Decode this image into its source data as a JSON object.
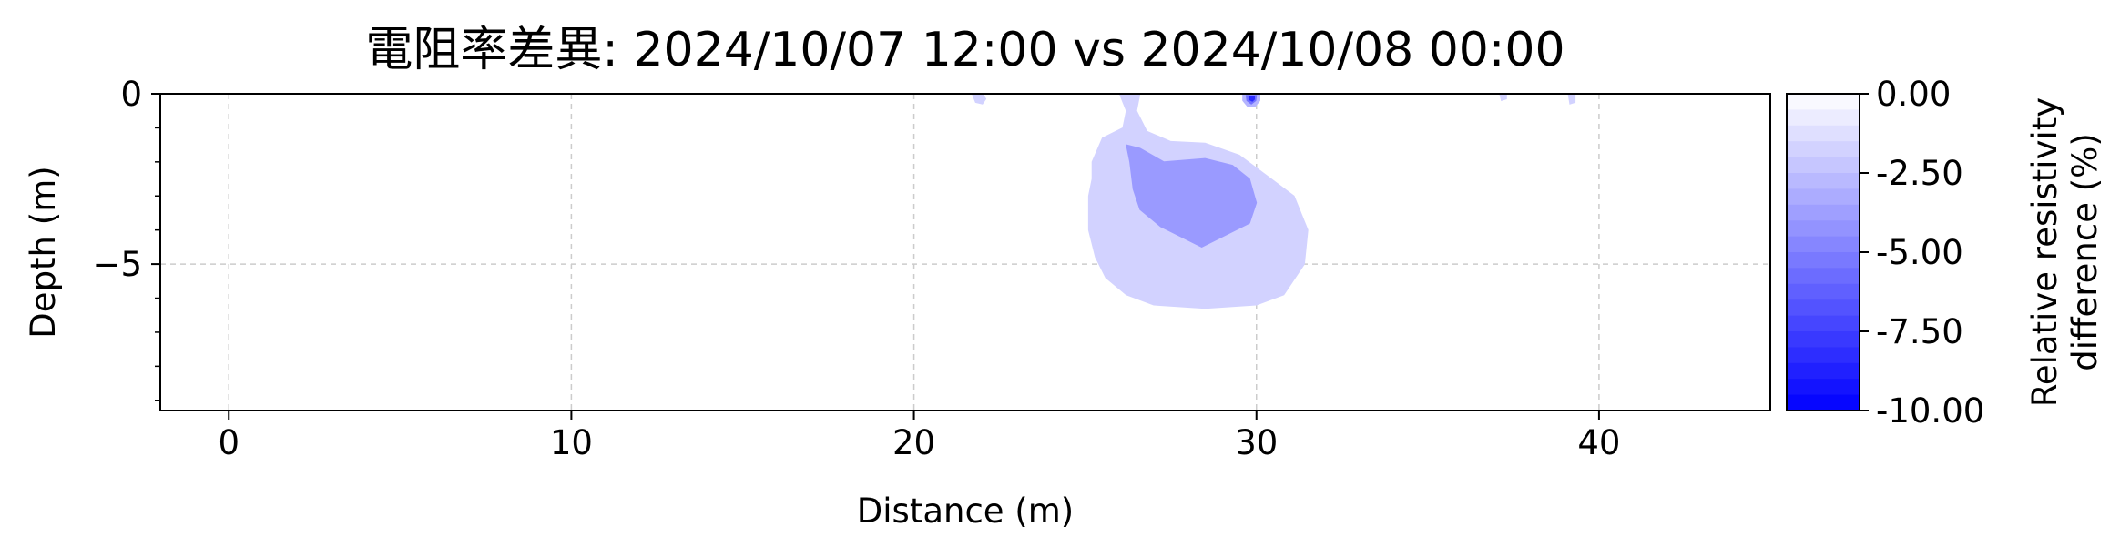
{
  "chart_data": {
    "type": "contour",
    "title": "電阻率差異: 2024/10/07 12:00 vs 2024/10/08 00:00",
    "xlabel": "Distance (m)",
    "ylabel": "Depth (m)",
    "xlim": [
      -2,
      45
    ],
    "ylim": [
      -9.3,
      0
    ],
    "x_ticks": [
      0,
      10,
      20,
      30,
      40
    ],
    "x_tick_labels": [
      "0",
      "10",
      "20",
      "30",
      "40"
    ],
    "y_ticks": [
      0,
      -5
    ],
    "y_tick_labels": [
      "0",
      "−5"
    ],
    "y_minor_ticks": [
      -1,
      -2,
      -3,
      -4,
      -6,
      -7,
      -8,
      -9
    ],
    "grid": true,
    "colorbar": {
      "label_line1": "Relative resistivity",
      "label_line2": "difference (%)",
      "range": [
        -10,
        0
      ],
      "ticks": [
        0,
        -2.5,
        -5,
        -7.5,
        -10
      ],
      "tick_labels": [
        "0.00",
        "-2.50",
        "-5.00",
        "-7.50",
        "-10.00"
      ],
      "color_low": "#0000ff",
      "color_high": "#ffffff",
      "levels": 20
    },
    "regions": [
      {
        "name": "anomaly-outer",
        "level": -1.0,
        "color": "#d2d2ff",
        "polygon": [
          [
            26.0,
            0
          ],
          [
            26.2,
            -0.5
          ],
          [
            26.1,
            -1.0
          ],
          [
            25.5,
            -1.3
          ],
          [
            25.2,
            -2.0
          ],
          [
            25.2,
            -2.5
          ],
          [
            25.1,
            -3.0
          ],
          [
            25.1,
            -4.0
          ],
          [
            25.3,
            -4.8
          ],
          [
            25.6,
            -5.4
          ],
          [
            26.2,
            -5.9
          ],
          [
            27.0,
            -6.2
          ],
          [
            28.5,
            -6.3
          ],
          [
            30.0,
            -6.2
          ],
          [
            30.8,
            -5.9
          ],
          [
            31.4,
            -5.0
          ],
          [
            31.5,
            -4.0
          ],
          [
            31.1,
            -3.0
          ],
          [
            30.3,
            -2.4
          ],
          [
            29.5,
            -1.8
          ],
          [
            28.5,
            -1.45
          ],
          [
            27.5,
            -1.4
          ],
          [
            26.8,
            -1.1
          ],
          [
            26.5,
            -0.5
          ],
          [
            26.6,
            0
          ]
        ]
      },
      {
        "name": "anomaly-inner",
        "level": -3.5,
        "color": "#9a9aff",
        "polygon": [
          [
            26.2,
            -1.5
          ],
          [
            26.3,
            -2.0
          ],
          [
            26.4,
            -2.8
          ],
          [
            26.6,
            -3.4
          ],
          [
            27.2,
            -3.9
          ],
          [
            28.4,
            -4.5
          ],
          [
            29.8,
            -3.8
          ],
          [
            30.0,
            -3.2
          ],
          [
            29.8,
            -2.5
          ],
          [
            29.3,
            -2.1
          ],
          [
            28.5,
            -1.9
          ],
          [
            27.3,
            -2.0
          ],
          [
            26.6,
            -1.6
          ]
        ]
      },
      {
        "name": "surface-spot-22",
        "level": -1.0,
        "color": "#d2d2ff",
        "polygon": [
          [
            21.7,
            0
          ],
          [
            21.8,
            -0.25
          ],
          [
            22.0,
            -0.3
          ],
          [
            22.1,
            -0.15
          ],
          [
            22.0,
            0
          ]
        ]
      },
      {
        "name": "surface-spot-37",
        "level": -1.0,
        "color": "#d2d2ff",
        "polygon": [
          [
            37.1,
            0
          ],
          [
            37.15,
            -0.2
          ],
          [
            37.3,
            -0.15
          ],
          [
            37.3,
            0
          ]
        ]
      },
      {
        "name": "surface-spot-39",
        "level": -1.0,
        "color": "#d2d2ff",
        "polygon": [
          [
            39.1,
            0
          ],
          [
            39.15,
            -0.3
          ],
          [
            39.3,
            -0.25
          ],
          [
            39.3,
            0
          ]
        ]
      },
      {
        "name": "surface-spot-30-outer",
        "level": -2.5,
        "color": "#b4b4ff",
        "polygon": [
          [
            29.6,
            0
          ],
          [
            29.6,
            -0.2
          ],
          [
            29.75,
            -0.38
          ],
          [
            29.95,
            -0.38
          ],
          [
            30.1,
            -0.2
          ],
          [
            30.1,
            0
          ]
        ]
      },
      {
        "name": "surface-spot-30-mid",
        "level": -5.0,
        "color": "#7070ff",
        "polygon": [
          [
            29.7,
            -0.05
          ],
          [
            29.72,
            -0.2
          ],
          [
            29.85,
            -0.3
          ],
          [
            29.98,
            -0.2
          ],
          [
            30.0,
            -0.05
          ]
        ]
      },
      {
        "name": "surface-spot-30-core",
        "level": -8.0,
        "color": "#2a2aff",
        "polygon": [
          [
            29.78,
            -0.08
          ],
          [
            29.8,
            -0.18
          ],
          [
            29.88,
            -0.22
          ],
          [
            29.94,
            -0.16
          ],
          [
            29.94,
            -0.08
          ]
        ]
      }
    ]
  }
}
